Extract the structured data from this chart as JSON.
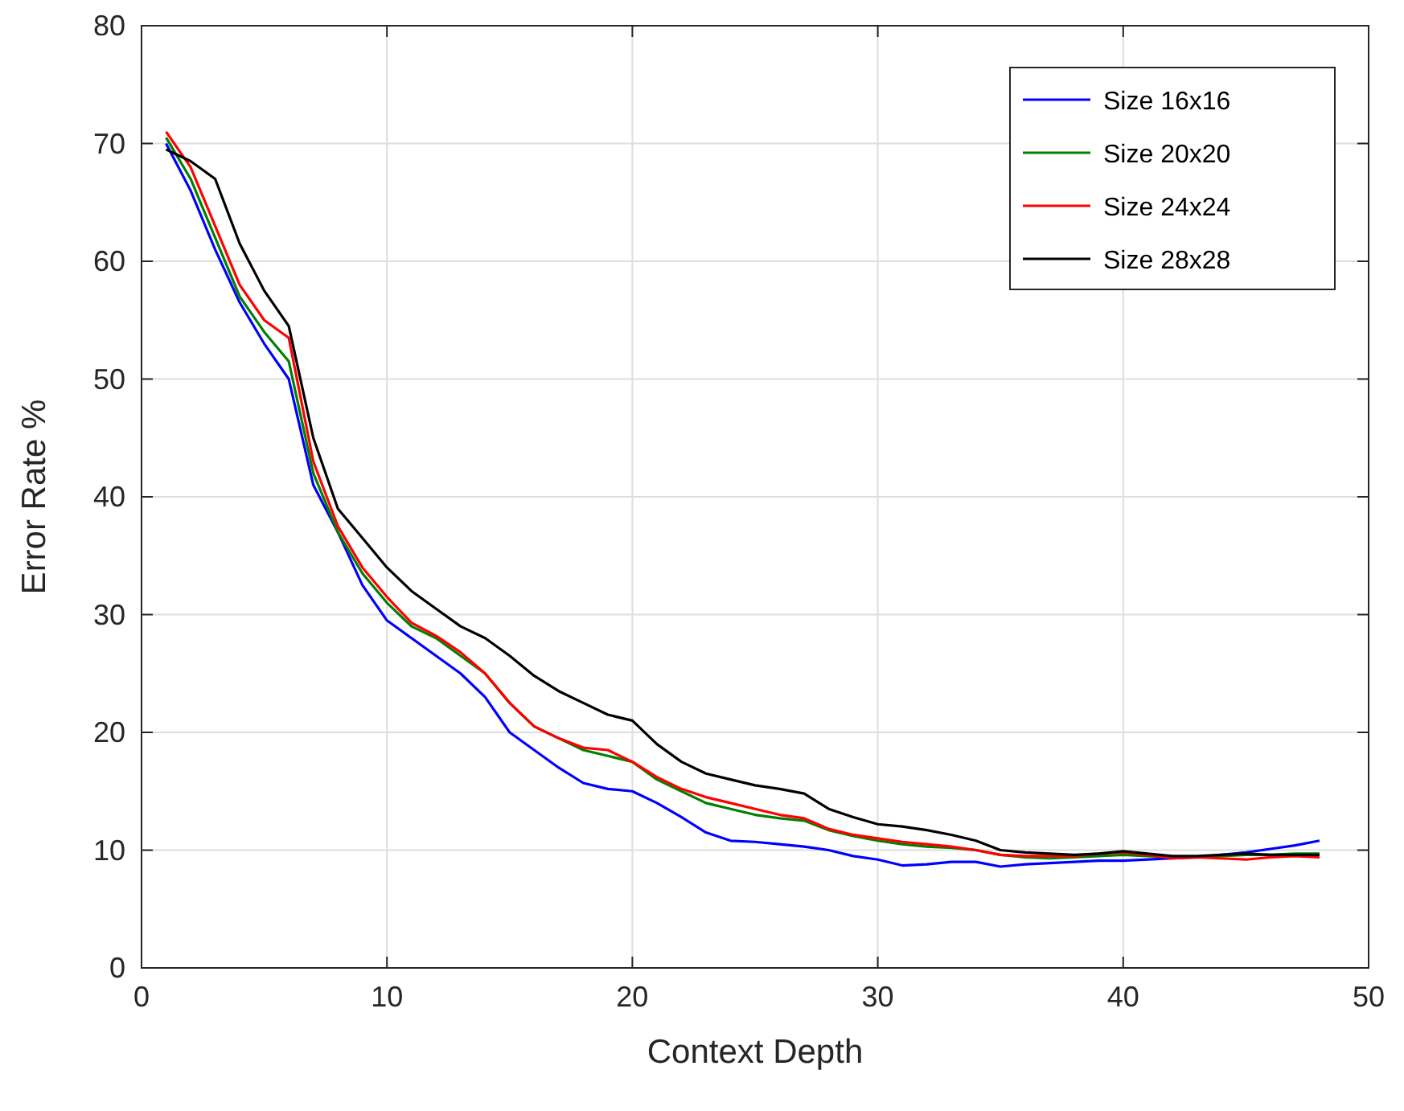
{
  "chart_data": {
    "type": "line",
    "xlabel": "Context Depth",
    "ylabel": "Error Rate %",
    "x": [
      1,
      2,
      3,
      4,
      5,
      6,
      7,
      8,
      9,
      10,
      11,
      12,
      13,
      14,
      15,
      16,
      17,
      18,
      19,
      20,
      21,
      22,
      23,
      24,
      25,
      26,
      27,
      28,
      29,
      30,
      31,
      32,
      33,
      34,
      35,
      36,
      37,
      38,
      39,
      40,
      41,
      42,
      43,
      44,
      45,
      46,
      47,
      48
    ],
    "series": [
      {
        "name": "Size 16x16",
        "color": "#0000ff",
        "values": [
          70,
          66,
          61,
          56.5,
          53,
          50,
          41,
          37,
          32.5,
          29.5,
          28,
          26.5,
          25,
          23,
          20,
          18.5,
          17,
          15.7,
          15.2,
          15,
          14,
          12.8,
          11.5,
          10.8,
          10.7,
          10.5,
          10.3,
          10,
          9.5,
          9.2,
          8.7,
          8.8,
          9,
          9,
          8.6,
          8.8,
          8.9,
          9,
          9.1,
          9.1,
          9.2,
          9.3,
          9.4,
          9.6,
          9.8,
          10.1,
          10.4,
          10.8
        ]
      },
      {
        "name": "Size 20x20",
        "color": "#008000",
        "values": [
          70.5,
          67,
          62,
          57,
          54,
          51.5,
          42,
          37,
          33.5,
          31,
          29,
          28,
          26.5,
          25,
          22.5,
          20.5,
          19.5,
          18.5,
          18,
          17.5,
          16,
          15,
          14,
          13.5,
          13,
          12.7,
          12.5,
          11.7,
          11.2,
          10.8,
          10.5,
          10.3,
          10.2,
          10,
          9.6,
          9.4,
          9.3,
          9.4,
          9.5,
          9.6,
          9.5,
          9.4,
          9.4,
          9.5,
          9.6,
          9.6,
          9.7,
          9.7
        ]
      },
      {
        "name": "Size 24x24",
        "color": "#ff0000",
        "values": [
          71,
          68,
          63,
          58,
          55,
          53.5,
          43,
          37.5,
          34,
          31.5,
          29.3,
          28.2,
          26.8,
          25,
          22.5,
          20.5,
          19.5,
          18.7,
          18.5,
          17.5,
          16.2,
          15.2,
          14.5,
          14,
          13.5,
          13,
          12.7,
          11.8,
          11.3,
          11,
          10.7,
          10.5,
          10.3,
          10,
          9.6,
          9.5,
          9.5,
          9.5,
          9.7,
          9.8,
          9.6,
          9.3,
          9.4,
          9.3,
          9.2,
          9.4,
          9.5,
          9.4
        ]
      },
      {
        "name": "Size 28x28",
        "color": "#000000",
        "values": [
          69.5,
          68.5,
          67,
          61.5,
          57.5,
          54.5,
          45,
          39,
          36.5,
          34,
          32,
          30.5,
          29,
          28,
          26.5,
          24.8,
          23.5,
          22.5,
          21.5,
          21,
          19,
          17.5,
          16.5,
          16,
          15.5,
          15.2,
          14.8,
          13.5,
          12.8,
          12.2,
          12,
          11.7,
          11.3,
          10.8,
          10,
          9.8,
          9.7,
          9.6,
          9.7,
          9.9,
          9.7,
          9.5,
          9.5,
          9.6,
          9.7,
          9.6,
          9.6,
          9.6
        ]
      }
    ],
    "xlim": [
      0,
      50
    ],
    "xticks": [
      0,
      10,
      20,
      30,
      40,
      50
    ],
    "ylim": [
      0,
      80
    ],
    "yticks": [
      0,
      10,
      20,
      30,
      40,
      50,
      60,
      70,
      80
    ],
    "grid": true,
    "legend": "top right",
    "line_style": "solid",
    "marker": "none"
  }
}
